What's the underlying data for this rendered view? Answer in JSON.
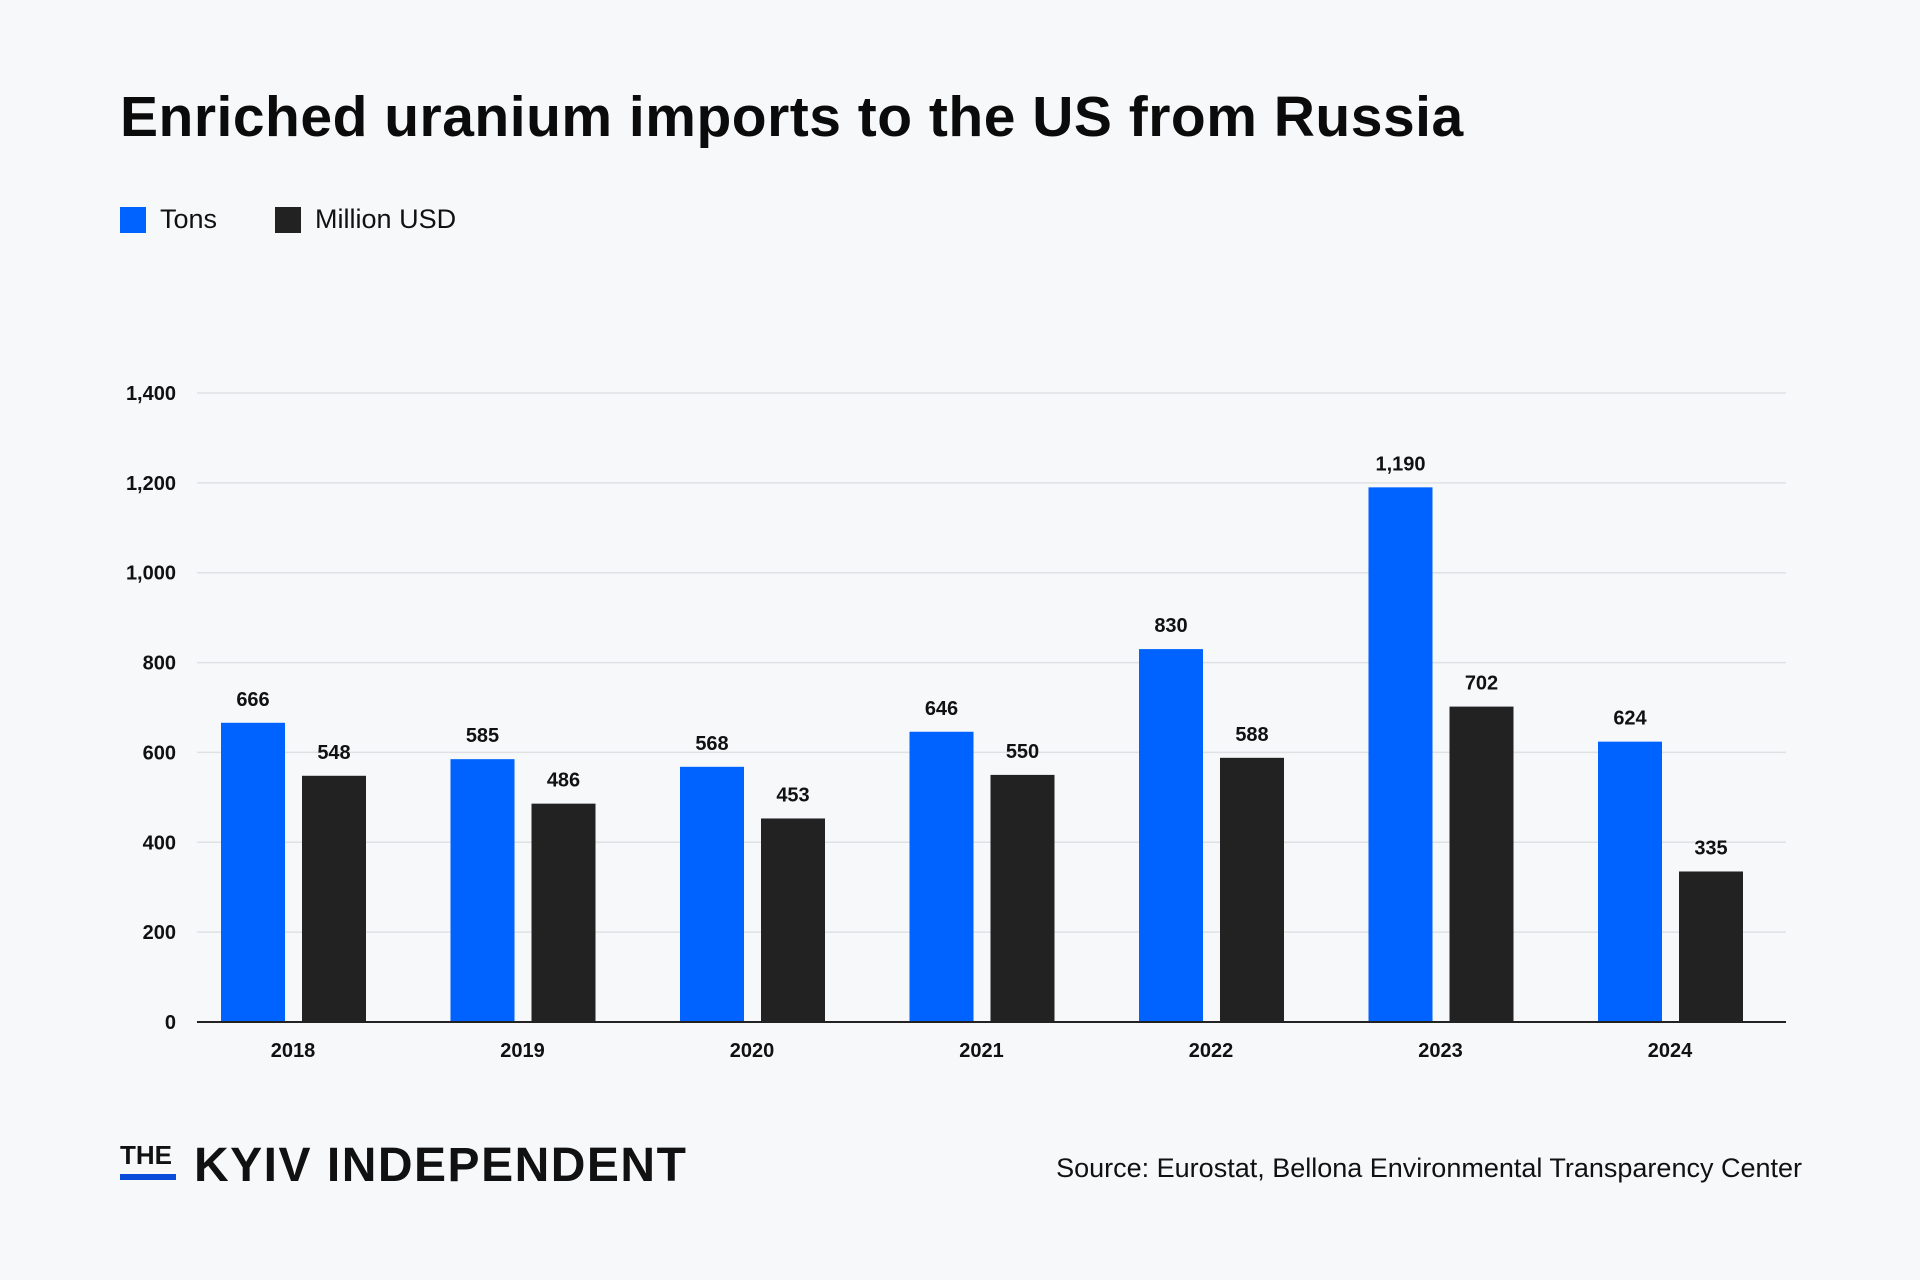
{
  "chart_data": {
    "type": "bar",
    "title": "Enriched uranium imports to the US from Russia",
    "categories": [
      "2018",
      "2019",
      "2020",
      "2021",
      "2022",
      "2023",
      "2024"
    ],
    "series": [
      {
        "name": "Tons",
        "color": "#0062ff",
        "values": [
          666,
          585,
          568,
          646,
          830,
          1190,
          624
        ],
        "labels": [
          "666",
          "585",
          "568",
          "646",
          "830",
          "1,190",
          "624"
        ]
      },
      {
        "name": "Million USD",
        "color": "#222222",
        "values": [
          548,
          486,
          453,
          550,
          588,
          702,
          335
        ],
        "labels": [
          "548",
          "486",
          "453",
          "550",
          "588",
          "702",
          "335"
        ]
      }
    ],
    "ylim": [
      0,
      1400
    ],
    "yticks": [
      0,
      200,
      400,
      600,
      800,
      1000,
      1200,
      1400
    ],
    "ytick_labels": [
      "0",
      "200",
      "400",
      "600",
      "800",
      "1,000",
      "1,200",
      "1,400"
    ],
    "grid": true,
    "legend": "top-left",
    "xlabel": "",
    "ylabel": ""
  },
  "footer": {
    "logo_the": "THE",
    "logo_main": "KYIV INDEPENDENT",
    "source": "Source: Eurostat, Bellona Environmental Transparency Center"
  }
}
